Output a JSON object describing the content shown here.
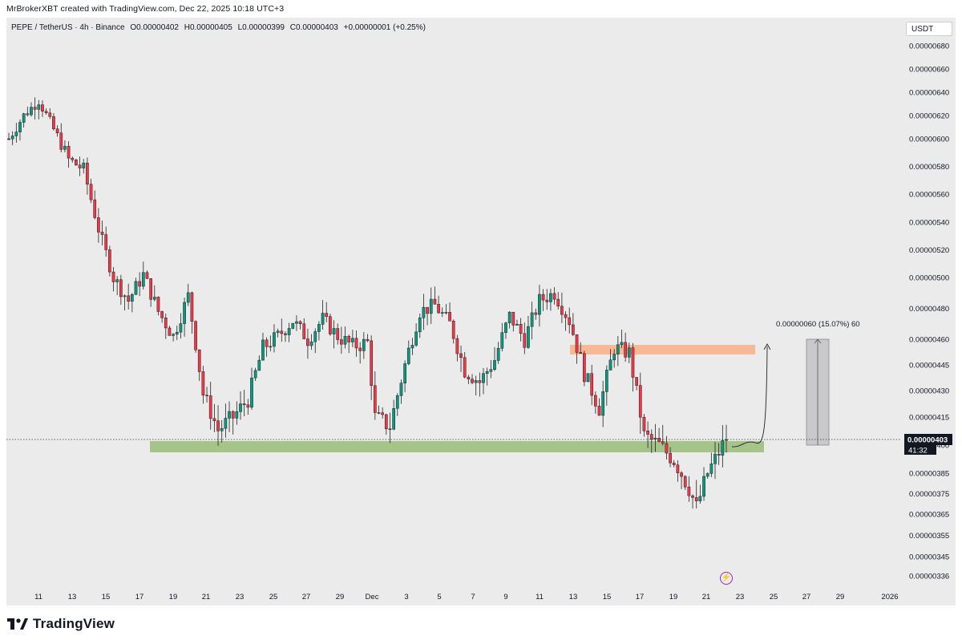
{
  "header": {
    "credit": "MrBrokerXBT created with TradingView.com, Dec 22, 2025 10:18 UTC+3"
  },
  "legend": {
    "symbol": "PEPE / TetherUS · 4h · Binance",
    "open": "O0.00000402",
    "high": "H0.00000405",
    "low": "L0.00000399",
    "close": "C0.00000403",
    "change": "+0.00000001 (+0.25%)"
  },
  "unit": "USDT",
  "price_tag": {
    "value": "0.00000403",
    "timer": "41:32"
  },
  "measure_label": "0.00000060 (15.07%) 60",
  "brand": "TradingView",
  "colors": {
    "up": "#089981",
    "down": "#f23645",
    "support_zone": "#a5c48a",
    "target_zone": "#f7b895",
    "measure_box": "#c9c9cc"
  },
  "chart_data": {
    "type": "candlestick",
    "y_ticks": [
      "0.00000680",
      "0.00000660",
      "0.00000640",
      "0.00000620",
      "0.00000600",
      "0.00000580",
      "0.00000560",
      "0.00000540",
      "0.00000520",
      "0.00000500",
      "0.00000480",
      "0.00000460",
      "0.00000445",
      "0.00000430",
      "0.00000415",
      "0.00000400",
      "0.00000385",
      "0.00000375",
      "0.00000365",
      "0.00000355",
      "0.00000345",
      "0.00000336"
    ],
    "x_ticks": [
      "11",
      "13",
      "15",
      "17",
      "19",
      "21",
      "23",
      "25",
      "27",
      "29",
      "Dec",
      "3",
      "5",
      "7",
      "9",
      "11",
      "13",
      "15",
      "17",
      "19",
      "21",
      "23",
      "25",
      "27",
      "29",
      "2026"
    ],
    "current_price": 4.03e-06,
    "ohlc_path": [
      [
        0,
        6.0
      ],
      [
        4,
        6.2
      ],
      [
        8,
        6.33
      ],
      [
        12,
        6.08
      ],
      [
        16,
        5.85
      ],
      [
        20,
        5.78
      ],
      [
        24,
        5.35
      ],
      [
        28,
        5.0
      ],
      [
        32,
        4.85
      ],
      [
        36,
        5.02
      ],
      [
        40,
        4.78
      ],
      [
        44,
        4.62
      ],
      [
        48,
        4.88
      ],
      [
        52,
        4.28
      ],
      [
        56,
        4.08
      ],
      [
        60,
        4.15
      ],
      [
        64,
        4.25
      ],
      [
        68,
        4.55
      ],
      [
        72,
        4.62
      ],
      [
        76,
        4.72
      ],
      [
        80,
        4.6
      ],
      [
        84,
        4.73
      ],
      [
        88,
        4.62
      ],
      [
        92,
        4.56
      ],
      [
        96,
        4.58
      ],
      [
        98,
        4.15
      ],
      [
        102,
        4.1
      ],
      [
        106,
        4.45
      ],
      [
        110,
        4.78
      ],
      [
        114,
        4.82
      ],
      [
        118,
        4.7
      ],
      [
        122,
        4.42
      ],
      [
        126,
        4.35
      ],
      [
        130,
        4.48
      ],
      [
        134,
        4.75
      ],
      [
        138,
        4.6
      ],
      [
        142,
        4.85
      ],
      [
        146,
        4.9
      ],
      [
        150,
        4.72
      ],
      [
        154,
        4.4
      ],
      [
        158,
        4.2
      ],
      [
        162,
        4.55
      ],
      [
        166,
        4.52
      ],
      [
        170,
        4.05
      ],
      [
        174,
        4.0
      ],
      [
        178,
        3.92
      ],
      [
        182,
        3.78
      ],
      [
        184,
        3.68
      ],
      [
        187,
        3.85
      ],
      [
        190,
        3.96
      ],
      [
        192,
        4.04
      ]
    ],
    "zones": [
      {
        "name": "support",
        "from": 3.97e-06,
        "to": 4.03e-06
      },
      {
        "name": "target",
        "from": 4.51e-06,
        "to": 4.56e-06
      }
    ]
  }
}
